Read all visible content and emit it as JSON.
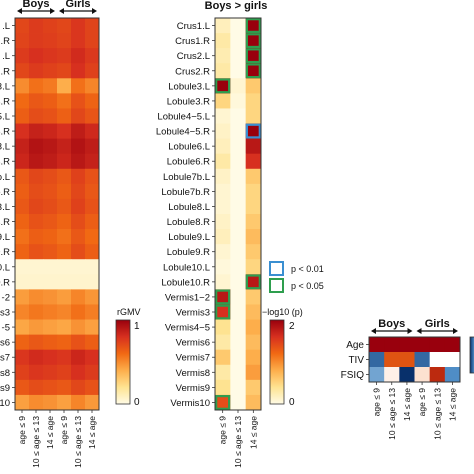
{
  "chart_data": [
    {
      "type": "heatmap",
      "group_labels": [
        "Boys",
        "Girls"
      ],
      "x_tick_labels": [
        "age ≤ 9",
        "10 ≤ age ≤ 13",
        "14 ≤ age",
        "age ≤ 9",
        "10 ≤ age ≤ 13",
        "14 ≤ age"
      ],
      "y_tick_labels": [
        ".L",
        ".R",
        ".L",
        ".R",
        "3.L",
        "3.R",
        "5.L",
        "5.R",
        "3.L",
        "3.R",
        "o.L",
        "o.R",
        "3.L",
        "3.R",
        "9.L",
        "9.R",
        "0.L",
        "0.R",
        "-2",
        "s3",
        "-5",
        "s6",
        "s7",
        "s8",
        "s9",
        "10"
      ],
      "values": [
        [
          0.72,
          0.76,
          0.74,
          0.72,
          0.78,
          0.73
        ],
        [
          0.73,
          0.76,
          0.75,
          0.73,
          0.78,
          0.73
        ],
        [
          0.76,
          0.8,
          0.78,
          0.76,
          0.82,
          0.77
        ],
        [
          0.72,
          0.76,
          0.74,
          0.72,
          0.8,
          0.74
        ],
        [
          0.5,
          0.58,
          0.55,
          0.4,
          0.58,
          0.52
        ],
        [
          0.6,
          0.66,
          0.64,
          0.58,
          0.68,
          0.62
        ],
        [
          0.64,
          0.7,
          0.68,
          0.63,
          0.72,
          0.67
        ],
        [
          0.8,
          0.86,
          0.84,
          0.8,
          0.88,
          0.83
        ],
        [
          0.86,
          0.92,
          0.9,
          0.86,
          0.92,
          0.88
        ],
        [
          0.84,
          0.9,
          0.88,
          0.84,
          0.9,
          0.86
        ],
        [
          0.66,
          0.72,
          0.7,
          0.66,
          0.74,
          0.68
        ],
        [
          0.64,
          0.7,
          0.68,
          0.64,
          0.72,
          0.66
        ],
        [
          0.66,
          0.72,
          0.7,
          0.66,
          0.74,
          0.68
        ],
        [
          0.62,
          0.68,
          0.66,
          0.62,
          0.7,
          0.64
        ],
        [
          0.58,
          0.64,
          0.62,
          0.58,
          0.66,
          0.6
        ],
        [
          0.62,
          0.68,
          0.66,
          0.62,
          0.7,
          0.64
        ],
        [
          0.05,
          0.05,
          0.05,
          0.05,
          0.05,
          0.05
        ],
        [
          0.06,
          0.06,
          0.06,
          0.06,
          0.06,
          0.06
        ],
        [
          0.45,
          0.5,
          0.48,
          0.45,
          0.52,
          0.47
        ],
        [
          0.52,
          0.56,
          0.54,
          0.52,
          0.58,
          0.54
        ],
        [
          0.42,
          0.46,
          0.44,
          0.42,
          0.48,
          0.44
        ],
        [
          0.62,
          0.66,
          0.64,
          0.62,
          0.68,
          0.64
        ],
        [
          0.78,
          0.82,
          0.8,
          0.78,
          0.84,
          0.8
        ],
        [
          0.74,
          0.78,
          0.76,
          0.74,
          0.8,
          0.76
        ],
        [
          0.66,
          0.7,
          0.68,
          0.66,
          0.72,
          0.68
        ],
        [
          0.44,
          0.5,
          0.48,
          0.44,
          0.52,
          0.46
        ]
      ],
      "colorbar": {
        "label": "rGMV",
        "min_label": "0",
        "max_label": "1",
        "range": [
          0,
          1
        ]
      },
      "colors": [
        "#fffbe6",
        "#fee391",
        "#fdae4b",
        "#f16913",
        "#d7301f",
        "#99000d"
      ]
    },
    {
      "type": "heatmap",
      "title": "Boys > girls",
      "x_tick_labels": [
        "age ≤ 9",
        "10 ≤ age ≤ 13",
        "14 ≤ age"
      ],
      "y_tick_labels": [
        "Crus1.L",
        "Crus1.R",
        "Crus2.L",
        "Crus2.R",
        "Lobule3.L",
        "Lobule3.R",
        "Lobule4−5.L",
        "Lobule4−5.R",
        "Lobule6.L",
        "Lobule6.R",
        "Lobule7b.L",
        "Lobule7b.R",
        "Lobule8.L",
        "Lobule8.R",
        "Lobule9.L",
        "Lobule9.R",
        "Lobule10.L",
        "Lobule10.R",
        "Vermis1−2",
        "Vermis3",
        "Vermis4−5",
        "Vermis6",
        "Vermis7",
        "Vermis8",
        "Vermis9",
        "Vermis10"
      ],
      "values": [
        [
          0.2,
          0.0,
          2.0
        ],
        [
          0.3,
          0.0,
          2.0
        ],
        [
          0.25,
          0.0,
          2.0
        ],
        [
          0.3,
          0.0,
          2.0
        ],
        [
          2.0,
          0.1,
          0.6
        ],
        [
          0.5,
          0.05,
          0.5
        ],
        [
          0.1,
          0.0,
          0.5
        ],
        [
          0.15,
          0.0,
          2.0
        ],
        [
          0.2,
          0.0,
          1.8
        ],
        [
          0.3,
          0.0,
          1.6
        ],
        [
          0.15,
          0.0,
          0.6
        ],
        [
          0.1,
          0.0,
          0.5
        ],
        [
          0.1,
          0.0,
          0.5
        ],
        [
          0.15,
          0.0,
          0.6
        ],
        [
          0.2,
          0.0,
          0.7
        ],
        [
          0.1,
          0.0,
          0.6
        ],
        [
          0.05,
          0.0,
          0.5
        ],
        [
          0.1,
          0.0,
          1.8
        ],
        [
          1.8,
          0.0,
          0.6
        ],
        [
          1.6,
          0.0,
          0.7
        ],
        [
          0.4,
          0.0,
          0.8
        ],
        [
          0.3,
          0.0,
          0.7
        ],
        [
          0.6,
          0.0,
          0.8
        ],
        [
          0.3,
          0.0,
          0.9
        ],
        [
          0.4,
          0.0,
          0.6
        ],
        [
          1.4,
          0.0,
          0.7
        ]
      ],
      "highlights": [
        {
          "row": 0,
          "col": 2,
          "level": "p < 0.05"
        },
        {
          "row": 1,
          "col": 2,
          "level": "p < 0.05"
        },
        {
          "row": 2,
          "col": 2,
          "level": "p < 0.05"
        },
        {
          "row": 3,
          "col": 2,
          "level": "p < 0.05"
        },
        {
          "row": 4,
          "col": 0,
          "level": "p < 0.05"
        },
        {
          "row": 7,
          "col": 2,
          "level": "p < 0.01"
        },
        {
          "row": 17,
          "col": 2,
          "level": "p < 0.05"
        },
        {
          "row": 18,
          "col": 0,
          "level": "p < 0.05"
        },
        {
          "row": 19,
          "col": 0,
          "level": "p < 0.05"
        },
        {
          "row": 25,
          "col": 0,
          "level": "p < 0.05"
        }
      ],
      "legend": [
        {
          "label": "p < 0.01",
          "color": "#3a8fd1"
        },
        {
          "label": "p < 0.05",
          "color": "#2e9e4e"
        }
      ],
      "colorbar": {
        "label": "−log10 (p)",
        "min_label": "0",
        "max_label": "2",
        "range": [
          0,
          2
        ]
      },
      "colors": [
        "#fffbe6",
        "#fee391",
        "#fdae4b",
        "#f16913",
        "#d7301f",
        "#99000d"
      ]
    },
    {
      "type": "heatmap",
      "group_labels": [
        "Boys",
        "Girls"
      ],
      "x_tick_labels": [
        "age ≤ 9",
        "10 ≤ age ≤ 13",
        "14 ≤ age",
        "age ≤ 9",
        "10 ≤ age ≤ 13",
        "14 ≤ age"
      ],
      "y_tick_labels": [
        "Age",
        "TIV",
        "FSIQ"
      ],
      "values": [
        [
          1.0,
          1.0,
          1.0,
          1.0,
          1.0,
          1.0
        ],
        [
          -0.7,
          0.6,
          0.6,
          -0.7,
          0.0,
          0.0
        ],
        [
          -0.4,
          0.05,
          -1.0,
          0.1,
          0.8,
          -0.5
        ]
      ],
      "colors": [
        "#08306b",
        "#4f8dc6",
        "#ffffff",
        "#f16913",
        "#99000d"
      ]
    }
  ]
}
